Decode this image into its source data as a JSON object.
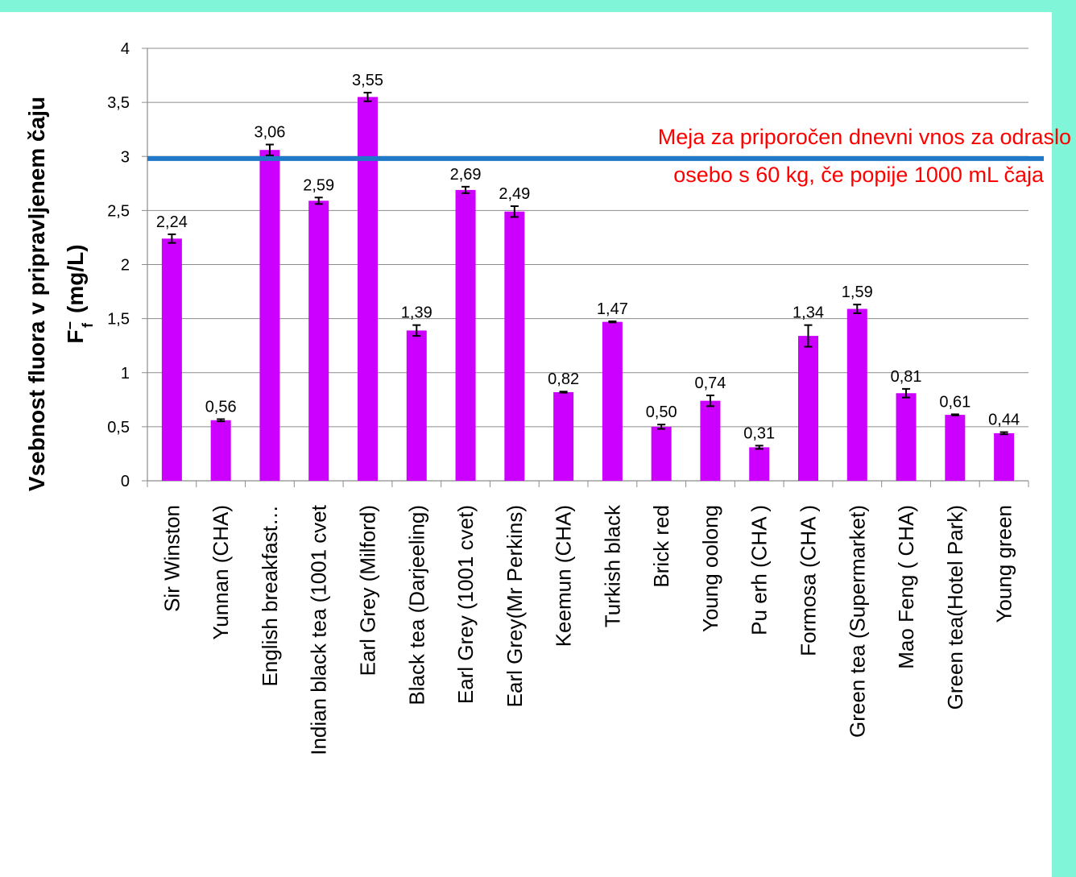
{
  "chart_data": {
    "type": "bar",
    "ylabel_line1": "Vsebnost fluora v pripravljenem čaju",
    "ylabel_line2_main": "F",
    "ylabel_line2_sup": "−",
    "ylabel_line2_sub": "f",
    "ylabel_line2_rest": "(mg/L)",
    "ylim": [
      0,
      4
    ],
    "yticks": [
      "0",
      "0,5",
      "1",
      "1,5",
      "2",
      "2,5",
      "3",
      "3,5",
      "4"
    ],
    "ytick_values": [
      0,
      0.5,
      1,
      1.5,
      2,
      2.5,
      3,
      3.5,
      4
    ],
    "grid": true,
    "bar_color": "#cc00ff",
    "categories": [
      "Sir Winston",
      "Yunnan (CHA)",
      "English breakfast…",
      "Indian black tea (1001 cvet",
      "Earl Grey (Milford)",
      "Black tea (Darjeeling)",
      "Earl Grey (1001 cvet)",
      "Earl Grey(Mr Perkins)",
      "Keemun (CHA)",
      "Turkish black",
      "Brick red",
      "Young oolong",
      "Pu erh (CHA )",
      "Formosa (CHA )",
      "Green tea (Supermarket)",
      "Mao Feng ( CHA)",
      "Green tea(Hotel Park)",
      "Young green"
    ],
    "values": [
      2.24,
      0.56,
      3.06,
      2.59,
      3.55,
      1.39,
      2.69,
      2.49,
      0.82,
      1.47,
      0.5,
      0.74,
      0.31,
      1.34,
      1.59,
      0.81,
      0.61,
      0.44
    ],
    "value_labels": [
      "2,24",
      "0,56",
      "3,06",
      "2,59",
      "3,55",
      "1,39",
      "2,69",
      "2,49",
      "0,82",
      "1,47",
      "0,50",
      "0,74",
      "0,31",
      "1,34",
      "1,59",
      "0,81",
      "0,61",
      "0,44"
    ],
    "errors": [
      0.04,
      0.01,
      0.05,
      0.03,
      0.04,
      0.05,
      0.03,
      0.05,
      0.005,
      0.005,
      0.02,
      0.05,
      0.015,
      0.1,
      0.04,
      0.04,
      0.005,
      0.01
    ],
    "limit_line": {
      "value": 2.98,
      "color": "#1f78c8",
      "text_line1": "Meja za priporočen dnevni vnos za odraslo",
      "text_line2": "osebo s 60 kg, če popije 1000 mL čaja",
      "text_color": "#ff0000"
    }
  }
}
